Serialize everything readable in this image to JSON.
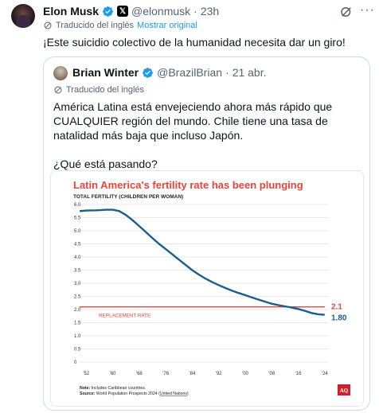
{
  "tweet": {
    "name": "Elon Musk",
    "handle": "@elonmusk",
    "separator": "·",
    "time": "23h",
    "more_icon": "more-icon",
    "translated_label": "Traducido del inglés",
    "show_original": "Mostrar original",
    "text": "¡Este suicidio colectivo de la humanidad necesita dar un giro!"
  },
  "quote": {
    "name": "Brian Winter",
    "handle": "@BrazilBrian",
    "separator": "·",
    "date": "21 abr.",
    "translated_label": "Traducido del inglés",
    "text": "América Latina está envejeciendo ahora más rápido que CUALQUIER región del mundo. Chile tiene una tasa de natalidad más baja que incluso Japón.\n\n¿Qué está pasando?"
  },
  "colors": {
    "accent": "#1d9bf0",
    "chart_title": "#e8443a",
    "line": "#1a5e8f",
    "replacement": "#e8443a"
  },
  "chart_data": {
    "type": "line",
    "title": "Latin America's fertility rate has been plunging",
    "ylabel": "TOTAL FERTILITY (CHILDREN PER WOMAN)",
    "ylim": [
      0,
      6
    ],
    "yticks": [
      "6.0",
      "5.5",
      "5.0",
      "4.5",
      "4.0",
      "3.5",
      "3.0",
      "2.5",
      "2.0",
      "1.5",
      "1.0",
      "0.5",
      "0"
    ],
    "xticks": [
      "'52",
      "'60",
      "'68",
      "'76",
      "'84",
      "'92",
      "'00",
      "'08",
      "'16",
      "'24"
    ],
    "xlim": [
      1950,
      2025
    ],
    "grid": true,
    "series": [
      {
        "x": [
          1950,
          1952,
          1955,
          1958,
          1960,
          1962,
          1964,
          1966,
          1968,
          1970,
          1972,
          1974,
          1976,
          1978,
          1980,
          1982,
          1984,
          1986,
          1988,
          1990,
          1992,
          1994,
          1996,
          1998,
          2000,
          2002,
          2004,
          2006,
          2008,
          2010,
          2012,
          2014,
          2016,
          2018,
          2020,
          2022,
          2024
        ],
        "y": [
          5.75,
          5.77,
          5.78,
          5.8,
          5.8,
          5.75,
          5.6,
          5.4,
          5.18,
          4.95,
          4.72,
          4.5,
          4.3,
          4.1,
          3.9,
          3.7,
          3.5,
          3.33,
          3.18,
          3.05,
          2.93,
          2.82,
          2.72,
          2.63,
          2.55,
          2.46,
          2.38,
          2.3,
          2.22,
          2.17,
          2.12,
          2.08,
          2.02,
          1.95,
          1.87,
          1.82,
          1.8
        ]
      }
    ],
    "reference_line": {
      "label": "REPLACEMENT RATE",
      "value": 2.1,
      "value_label": "2.1"
    },
    "end_label": "1.80",
    "note_label": "Note:",
    "note_text": " Includes Caribbean countries.",
    "source_label": "Source:",
    "source_text": " World Population Prospects 2024 (",
    "source_link": "United Nations",
    "source_end": ")",
    "logo": "AQ"
  }
}
